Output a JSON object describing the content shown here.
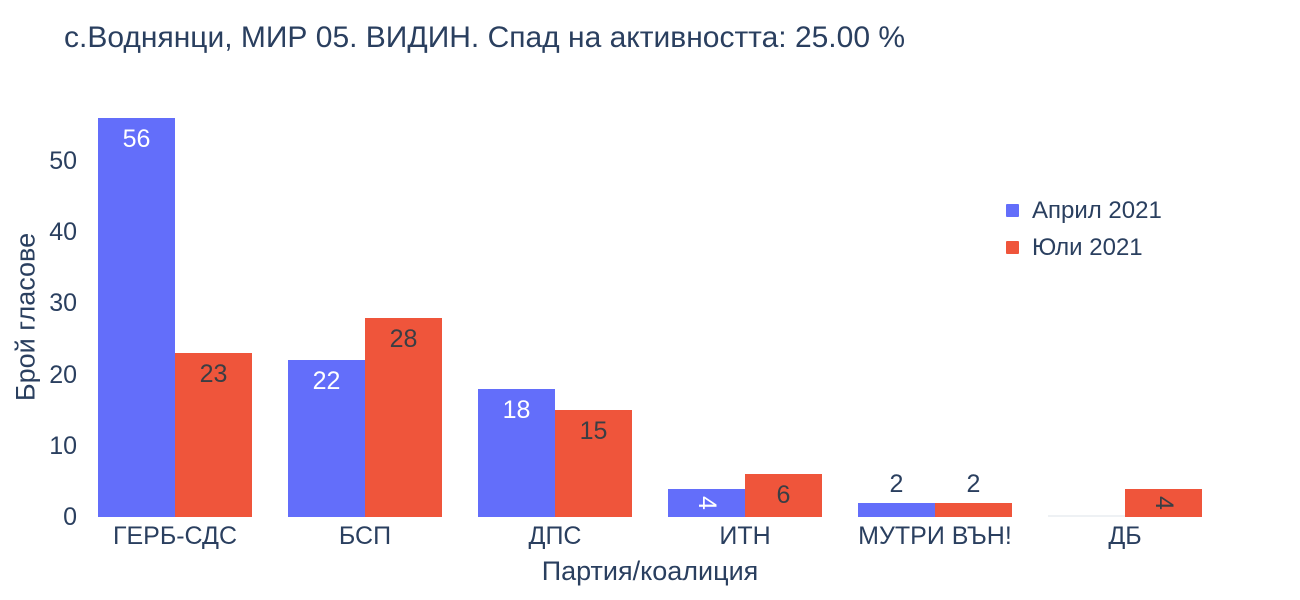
{
  "chart_data": {
    "type": "bar",
    "title": "с.Воднянци, МИР 05. ВИДИН. Спад на активността: 25.00 %",
    "xlabel": "Партия/коалиция",
    "ylabel": "Брой гласове",
    "categories": [
      "ГЕРБ-СДС",
      "БСП",
      "ДПС",
      "ИТН",
      "МУТРИ ВЪН!",
      "ДБ"
    ],
    "series": [
      {
        "name": "Април 2021",
        "color": "#636EFA",
        "values": [
          56,
          22,
          18,
          4,
          2,
          0
        ]
      },
      {
        "name": "Юли 2021",
        "color": "#EF553B",
        "values": [
          23,
          28,
          15,
          6,
          2,
          4
        ]
      }
    ],
    "yticks": [
      0,
      10,
      20,
      30,
      40,
      50
    ],
    "ylim": [
      0,
      58.6
    ],
    "grid": false,
    "background": "#ffffff",
    "legend_position": "right"
  },
  "colors": {
    "text": "#2a3f5f",
    "label_on_blue": "#ffffff",
    "label_on_red": "#3a3e44",
    "label_outside": "#2a3f5f",
    "zero_bar_line": "#eef1f4"
  }
}
